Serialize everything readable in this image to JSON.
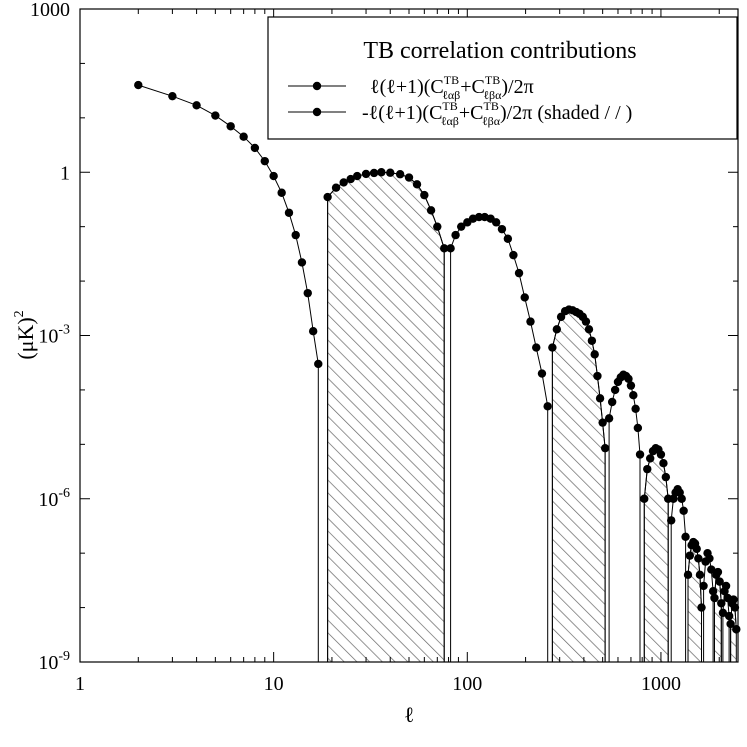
{
  "chart_data": {
    "type": "line",
    "xscale": "log",
    "yscale": "log",
    "xlim": [
      1,
      2500
    ],
    "ylim": [
      1e-09,
      1000
    ],
    "xlabel": "ℓ",
    "ylabel_main": "(μK)",
    "ylabel_sup": "2",
    "xticks": [
      {
        "value": 1,
        "label": "1"
      },
      {
        "value": 10,
        "label": "10"
      },
      {
        "value": 100,
        "label": "100"
      },
      {
        "value": 1000,
        "label": "1000"
      }
    ],
    "yticks": [
      {
        "value": 1000,
        "base": "1000",
        "exp": ""
      },
      {
        "value": 1,
        "base": "1",
        "exp": ""
      },
      {
        "value": 0.001,
        "base": "10",
        "exp": "-3"
      },
      {
        "value": 1e-06,
        "base": "10",
        "exp": "-6"
      },
      {
        "value": 1e-09,
        "base": "10",
        "exp": "-9"
      }
    ],
    "legend": {
      "title": "TB correlation contributions",
      "position": "top-right",
      "entries": [
        {
          "prefix": "ℓ(ℓ+1)(C",
          "sup1": "TB",
          "sub1": "ℓαβ",
          "mid": "+C",
          "sup2": "TB",
          "sub2": "ℓβα",
          "suffix": ")/2π"
        },
        {
          "prefix": "-ℓ(ℓ+1)(C",
          "sup1": "TB",
          "sub1": "ℓαβ",
          "mid": "+C",
          "sup2": "TB",
          "sub2": "ℓβα",
          "suffix": ")/2π (shaded / / )"
        }
      ]
    },
    "series": [
      {
        "sign": "positive",
        "x": [
          2,
          3,
          4,
          5,
          6,
          7,
          8,
          9,
          10,
          11,
          12,
          13,
          14,
          15,
          16,
          17
        ],
        "y": [
          40,
          25,
          17,
          11,
          7,
          4.5,
          2.8,
          1.6,
          0.85,
          0.42,
          0.18,
          0.07,
          0.022,
          0.006,
          0.0012,
          0.0003
        ]
      },
      {
        "sign": "negative",
        "x": [
          19,
          21,
          23,
          25,
          27,
          30,
          33,
          36,
          40,
          45,
          50,
          55,
          60,
          65,
          70,
          76
        ],
        "y": [
          0.35,
          0.52,
          0.65,
          0.75,
          0.85,
          0.93,
          0.97,
          1.0,
          0.98,
          0.92,
          0.8,
          0.6,
          0.38,
          0.2,
          0.1,
          0.04
        ]
      },
      {
        "sign": "positive",
        "x": [
          82,
          87,
          93,
          100,
          107,
          115,
          123,
          132,
          141,
          151,
          162,
          173,
          185,
          198,
          212,
          227,
          243,
          260
        ],
        "y": [
          0.04,
          0.07,
          0.1,
          0.12,
          0.14,
          0.15,
          0.15,
          0.14,
          0.12,
          0.09,
          0.06,
          0.03,
          0.014,
          0.005,
          0.0018,
          0.0006,
          0.0002,
          5e-05
        ]
      },
      {
        "sign": "negative",
        "x": [
          275,
          290,
          305,
          320,
          335,
          350,
          365,
          380,
          395,
          410,
          425,
          440,
          455,
          470,
          485,
          500,
          515
        ],
        "y": [
          0.0006,
          0.0013,
          0.0022,
          0.0028,
          0.003,
          0.0029,
          0.0027,
          0.0025,
          0.0022,
          0.0018,
          0.0013,
          0.0008,
          0.00045,
          0.00018,
          7e-05,
          2.5e-05,
          8.5e-06
        ]
      },
      {
        "sign": "positive",
        "x": [
          540,
          560,
          580,
          600,
          620,
          640,
          660,
          680,
          700,
          720,
          740,
          760,
          780
        ],
        "y": [
          3e-05,
          6e-05,
          0.0001,
          0.00014,
          0.00017,
          0.00019,
          0.00018,
          0.00016,
          0.00012,
          8e-05,
          4.5e-05,
          2e-05,
          6.5e-06
        ]
      },
      {
        "sign": "negative",
        "x": [
          820,
          850,
          880,
          910,
          940,
          970,
          1000,
          1030,
          1060,
          1090
        ],
        "y": [
          1e-06,
          3.5e-06,
          5.5e-06,
          7.5e-06,
          8.5e-06,
          8e-06,
          6.5e-06,
          4.5e-06,
          2.5e-06,
          1e-06
        ]
      },
      {
        "sign": "positive",
        "x": [
          1130,
          1160,
          1190,
          1220,
          1250,
          1280,
          1310,
          1340
        ],
        "y": [
          4e-07,
          1e-06,
          1.3e-06,
          1.5e-06,
          1.3e-06,
          1e-06,
          6e-07,
          2e-07
        ]
      },
      {
        "sign": "negative",
        "x": [
          1380,
          1410,
          1440,
          1470,
          1500,
          1530,
          1560,
          1590,
          1620
        ],
        "y": [
          4e-08,
          9e-08,
          1.4e-07,
          1.6e-07,
          1.5e-07,
          1.2e-07,
          8e-08,
          4e-08,
          1e-08
        ]
      },
      {
        "sign": "positive",
        "x": [
          1660,
          1700,
          1740,
          1780,
          1820,
          1860
        ],
        "y": [
          2.5e-08,
          7e-08,
          1e-07,
          8e-08,
          5e-08,
          2e-08
        ]
      },
      {
        "sign": "negative",
        "x": [
          1890,
          1930,
          1970,
          2010,
          2050
        ],
        "y": [
          1.5e-08,
          4e-08,
          4.5e-08,
          3e-08,
          1.2e-08
        ]
      },
      {
        "sign": "positive",
        "x": [
          2090,
          2130,
          2170,
          2210,
          2250
        ],
        "y": [
          8e-09,
          2e-08,
          2.5e-08,
          1.5e-08,
          7e-09
        ]
      },
      {
        "sign": "negative",
        "x": [
          2290,
          2330,
          2370,
          2410,
          2450
        ],
        "y": [
          5e-09,
          1.2e-08,
          1.4e-08,
          1e-08,
          4e-09
        ]
      }
    ]
  }
}
